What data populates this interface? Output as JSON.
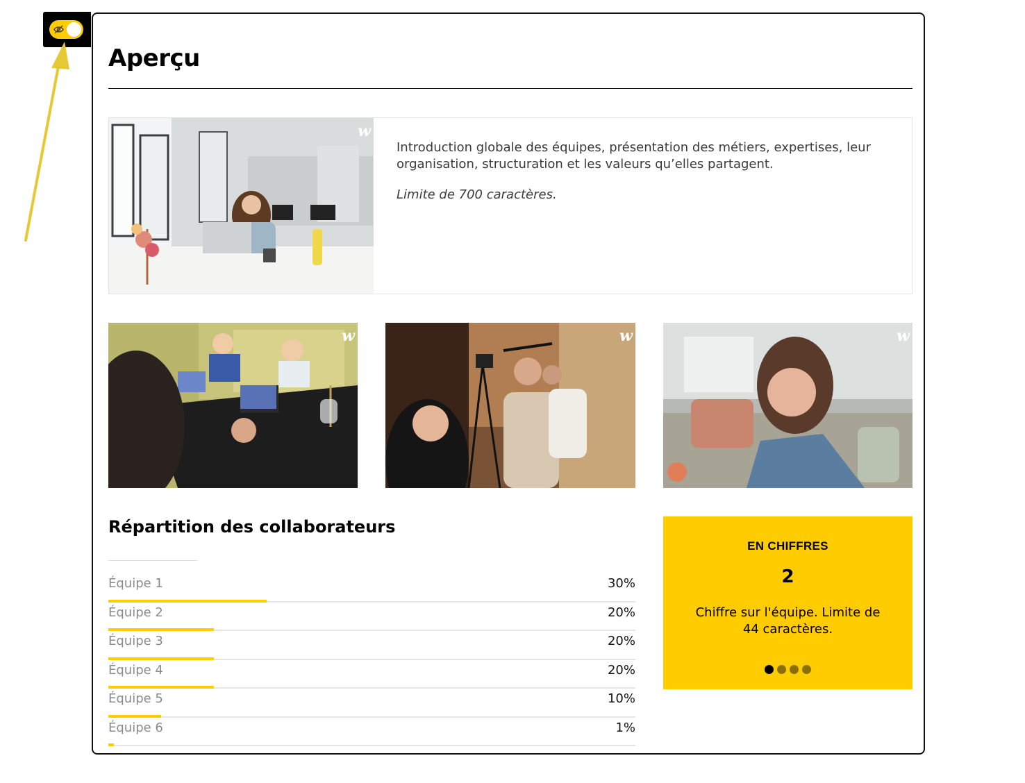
{
  "page": {
    "title": "Aperçu",
    "accent_color": "#ffcc00"
  },
  "toggle": {
    "icon": "eye-slash-icon",
    "state": "on"
  },
  "intro": {
    "description": "Introduction globale des équipes, présentation des métiers, expertises, leur organisation, structuration et les valeurs qu’elles partagent.",
    "limit_note": "Limite de 700 caractères.",
    "logo": "w-logo"
  },
  "gallery": {
    "logo_text": "w"
  },
  "repartition": {
    "title": "Répartition des collaborateurs",
    "teams": [
      {
        "name": "Équipe 1",
        "percent_label": "30%",
        "percent": 30
      },
      {
        "name": "Équipe 2",
        "percent_label": "20%",
        "percent": 20
      },
      {
        "name": "Équipe 3",
        "percent_label": "20%",
        "percent": 20
      },
      {
        "name": "Équipe 4",
        "percent_label": "20%",
        "percent": 20
      },
      {
        "name": "Équipe 5",
        "percent_label": "10%",
        "percent": 10
      },
      {
        "name": "Équipe 6",
        "percent_label": "1%",
        "percent": 1
      }
    ]
  },
  "figures": {
    "label": "EN CHIFFRES",
    "value": "2",
    "description": "Chiffre sur l'équipe. Limite de 44 caractères.",
    "slide_count": 4,
    "active_slide": 1
  }
}
